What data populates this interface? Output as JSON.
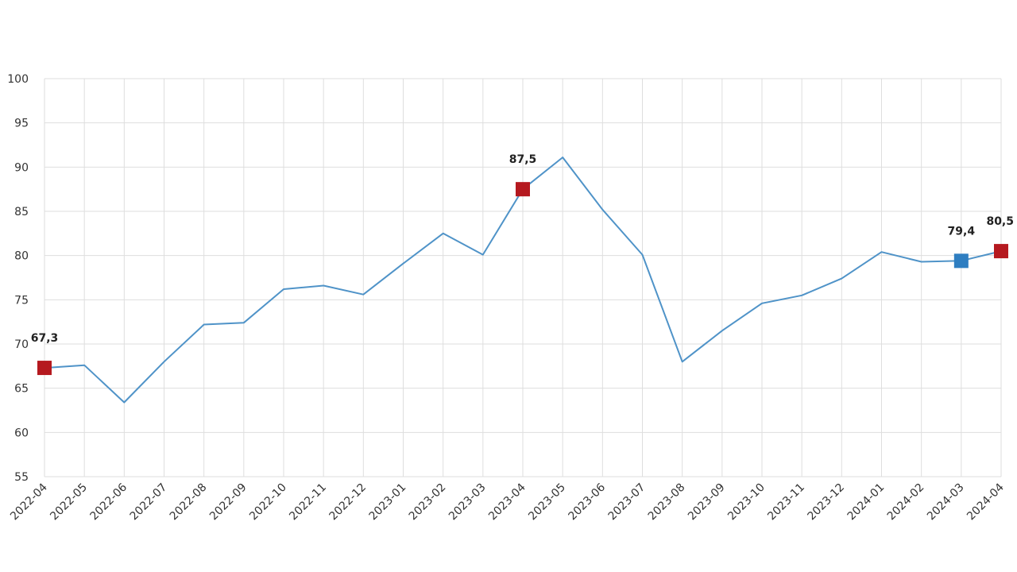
{
  "chart_data": {
    "type": "line",
    "categories": [
      "2022-04",
      "2022-05",
      "2022-06",
      "2022-07",
      "2022-08",
      "2022-09",
      "2022-10",
      "2022-11",
      "2022-12",
      "2023-01",
      "2023-02",
      "2023-03",
      "2023-04",
      "2023-05",
      "2023-06",
      "2023-07",
      "2023-08",
      "2023-09",
      "2023-10",
      "2023-11",
      "2023-12",
      "2024-01",
      "2024-02",
      "2024-03",
      "2024-04"
    ],
    "series": [
      {
        "values": [
          67.3,
          67.6,
          63.4,
          68.0,
          72.2,
          72.4,
          76.2,
          76.6,
          75.6,
          79.1,
          82.5,
          80.1,
          87.5,
          91.1,
          85.2,
          80.1,
          68.0,
          71.5,
          74.6,
          75.5,
          77.4,
          80.4,
          79.3,
          79.4,
          80.5
        ],
        "color": "#4f93c8"
      }
    ],
    "markers": [
      {
        "index": 0,
        "label": "67,3",
        "color": "#b5191f"
      },
      {
        "index": 12,
        "label": "87,5",
        "color": "#b5191f"
      },
      {
        "index": 23,
        "label": "79,4",
        "color": "#2e7ec1"
      },
      {
        "index": 24,
        "label": "80,5",
        "color": "#b5191f"
      }
    ],
    "yticks": [
      "55",
      "60",
      "65",
      "70",
      "75",
      "80",
      "85",
      "90",
      "95",
      "100"
    ],
    "ylim": [
      55,
      100
    ],
    "grid": true,
    "legend": "none"
  }
}
